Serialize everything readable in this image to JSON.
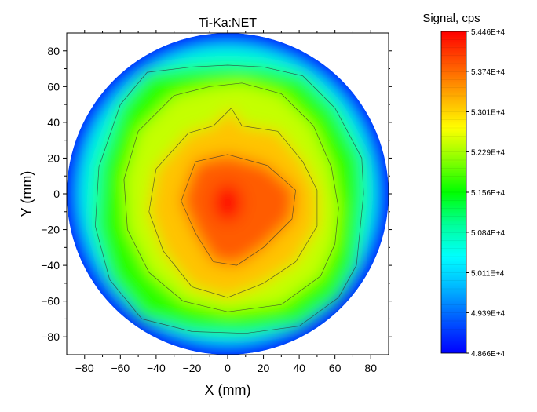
{
  "chart_data": {
    "type": "heatmap",
    "subtype": "contour",
    "title": "Ti-Ka:NET",
    "xlabel": "X (mm)",
    "ylabel": "Y (mm)",
    "xlim": [
      -90,
      90
    ],
    "ylim": [
      -90,
      90
    ],
    "x_ticks": [
      -80,
      -60,
      -40,
      -20,
      0,
      20,
      40,
      60,
      80
    ],
    "y_ticks": [
      -80,
      -60,
      -40,
      -20,
      0,
      20,
      40,
      60,
      80
    ],
    "x_tick_labels": [
      "−80",
      "−60",
      "−40",
      "−20",
      "0",
      "20",
      "40",
      "60",
      "80"
    ],
    "y_tick_labels": [
      "−80",
      "−60",
      "−40",
      "−20",
      "0",
      "20",
      "40",
      "60",
      "80"
    ],
    "colorbar": {
      "title": "Signal, cps",
      "min": 48660,
      "max": 54460,
      "tick_values": [
        54460,
        53740,
        53010,
        52290,
        51560,
        50840,
        50110,
        49390,
        48660
      ],
      "tick_labels": [
        "5.446E+4",
        "5.374E+4",
        "5.301E+4",
        "5.229E+4",
        "5.156E+4",
        "5.084E+4",
        "5.011E+4",
        "4.939E+4",
        "4.866E+4"
      ],
      "colormap": [
        "#0000ff",
        "#0055ff",
        "#00b4ff",
        "#00ffff",
        "#00ff99",
        "#00ff00",
        "#88ff00",
        "#ffff00",
        "#ffaa00",
        "#ff5500",
        "#ff0000"
      ]
    },
    "peak": {
      "x": 0,
      "y": -5,
      "value": 54460
    },
    "boundary_radius_mm": 90,
    "contour_levels": [
      {
        "value": 51500,
        "points": [
          [
            -45,
            68
          ],
          [
            -20,
            71
          ],
          [
            0,
            72
          ],
          [
            20,
            71
          ],
          [
            42,
            66
          ],
          [
            60,
            48
          ],
          [
            75,
            20
          ],
          [
            76,
            0
          ],
          [
            74,
            -20
          ],
          [
            72,
            -40
          ],
          [
            62,
            -58
          ],
          [
            40,
            -74
          ],
          [
            10,
            -78
          ],
          [
            -20,
            -77
          ],
          [
            -48,
            -70
          ],
          [
            -66,
            -48
          ],
          [
            -74,
            -18
          ],
          [
            -72,
            15
          ],
          [
            -60,
            50
          ]
        ]
      },
      {
        "value": 52200,
        "points": [
          [
            -30,
            55
          ],
          [
            -10,
            60
          ],
          [
            8,
            62
          ],
          [
            30,
            56
          ],
          [
            48,
            38
          ],
          [
            58,
            15
          ],
          [
            62,
            -8
          ],
          [
            60,
            -28
          ],
          [
            52,
            -46
          ],
          [
            30,
            -62
          ],
          [
            0,
            -66
          ],
          [
            -25,
            -60
          ],
          [
            -44,
            -44
          ],
          [
            -56,
            -20
          ],
          [
            -58,
            8
          ],
          [
            -50,
            35
          ]
        ]
      },
      {
        "value": 52900,
        "points": [
          [
            -22,
            34
          ],
          [
            -8,
            38
          ],
          [
            2,
            48
          ],
          [
            8,
            38
          ],
          [
            28,
            35
          ],
          [
            42,
            18
          ],
          [
            50,
            2
          ],
          [
            50,
            -18
          ],
          [
            38,
            -38
          ],
          [
            20,
            -50
          ],
          [
            0,
            -58
          ],
          [
            -20,
            -52
          ],
          [
            -36,
            -32
          ],
          [
            -44,
            -10
          ],
          [
            -40,
            14
          ]
        ]
      },
      {
        "value": 53600,
        "points": [
          [
            -18,
            18
          ],
          [
            0,
            22
          ],
          [
            22,
            16
          ],
          [
            38,
            2
          ],
          [
            36,
            -14
          ],
          [
            20,
            -30
          ],
          [
            5,
            -40
          ],
          [
            -8,
            -38
          ],
          [
            -18,
            -22
          ],
          [
            -26,
            -4
          ]
        ]
      }
    ]
  }
}
